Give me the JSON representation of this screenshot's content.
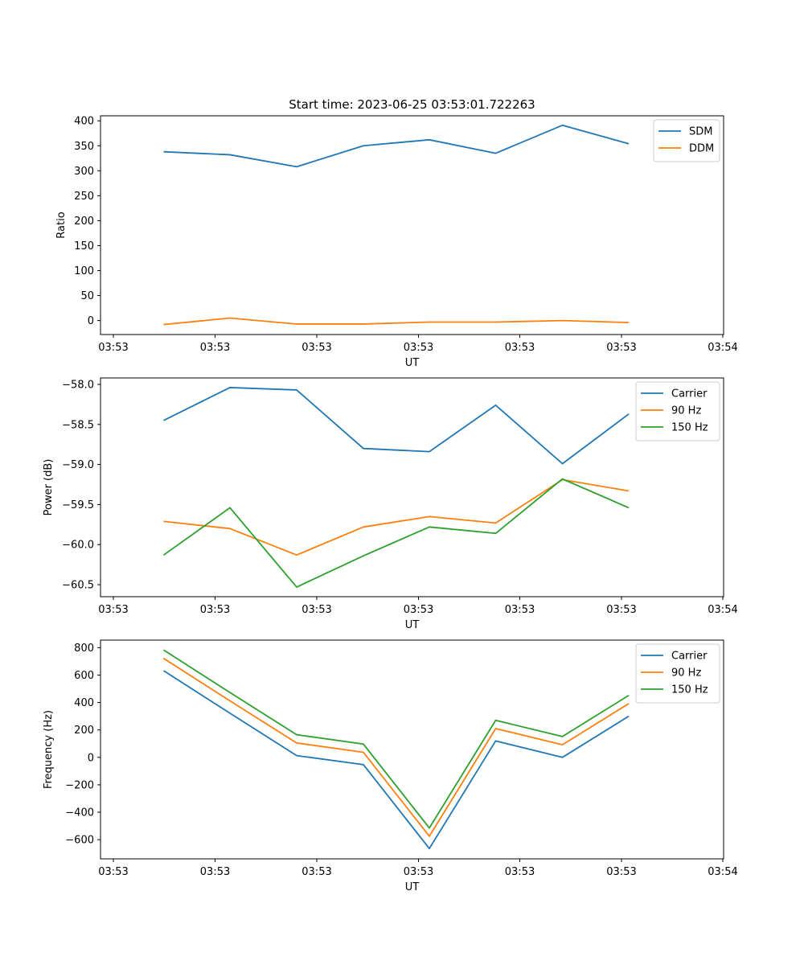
{
  "title": "Start time: 2023-06-25 03:53:01.722263",
  "colors": {
    "blue": "#1f77b4",
    "orange": "#ff7f0e",
    "green": "#2ca02c"
  },
  "chart_data": [
    {
      "type": "line",
      "title": "Start time: 2023-06-25 03:53:01.722263",
      "xlabel": "UT",
      "ylabel": "Ratio",
      "x_tick_labels": [
        "03:53",
        "03:53",
        "03:53",
        "03:53",
        "03:53",
        "03:53",
        "03:54"
      ],
      "y_ticks": [
        0,
        50,
        100,
        150,
        200,
        250,
        300,
        350,
        400
      ],
      "ylim": [
        -28,
        410
      ],
      "grid": false,
      "legend_position": "upper-right",
      "series": [
        {
          "name": "SDM",
          "color": "#1f77b4",
          "values": [
            338,
            332,
            308,
            350,
            362,
            335,
            391,
            354
          ]
        },
        {
          "name": "DDM",
          "color": "#ff7f0e",
          "values": [
            -8,
            5,
            -7,
            -7,
            -3,
            -3,
            0,
            -4
          ]
        }
      ]
    },
    {
      "type": "line",
      "xlabel": "UT",
      "ylabel": "Power (dB)",
      "x_tick_labels": [
        "03:53",
        "03:53",
        "03:53",
        "03:53",
        "03:53",
        "03:53",
        "03:54"
      ],
      "y_ticks": [
        -58.0,
        -58.5,
        -59.0,
        -59.5,
        -60.0,
        -60.5
      ],
      "ylim": [
        -60.65,
        -57.92
      ],
      "grid": false,
      "legend_position": "upper-right",
      "series": [
        {
          "name": "Carrier",
          "color": "#1f77b4",
          "values": [
            -58.45,
            -58.04,
            -58.07,
            -58.8,
            -58.84,
            -58.26,
            -58.99,
            -58.37
          ]
        },
        {
          "name": "90 Hz",
          "color": "#ff7f0e",
          "values": [
            -59.71,
            -59.8,
            -60.13,
            -59.78,
            -59.65,
            -59.73,
            -59.19,
            -59.33
          ]
        },
        {
          "name": "150 Hz",
          "color": "#2ca02c",
          "values": [
            -60.13,
            -59.54,
            -60.53,
            -60.14,
            -59.78,
            -59.86,
            -59.18,
            -59.54
          ]
        }
      ]
    },
    {
      "type": "line",
      "xlabel": "UT",
      "ylabel": "Frequency (Hz)",
      "x_tick_labels": [
        "03:53",
        "03:53",
        "03:53",
        "03:53",
        "03:53",
        "03:53",
        "03:54"
      ],
      "y_ticks": [
        -600,
        -400,
        -200,
        0,
        200,
        400,
        600,
        800
      ],
      "ylim": [
        -740,
        855
      ],
      "grid": false,
      "legend_position": "upper-right",
      "series": [
        {
          "name": "Carrier",
          "color": "#1f77b4",
          "values": [
            632,
            322,
            13,
            -53,
            -665,
            120,
            0,
            300
          ]
        },
        {
          "name": "90 Hz",
          "color": "#ff7f0e",
          "values": [
            722,
            412,
            105,
            37,
            -575,
            210,
            92,
            392
          ]
        },
        {
          "name": "150 Hz",
          "color": "#2ca02c",
          "values": [
            783,
            473,
            165,
            97,
            -515,
            270,
            152,
            452
          ]
        }
      ]
    }
  ]
}
